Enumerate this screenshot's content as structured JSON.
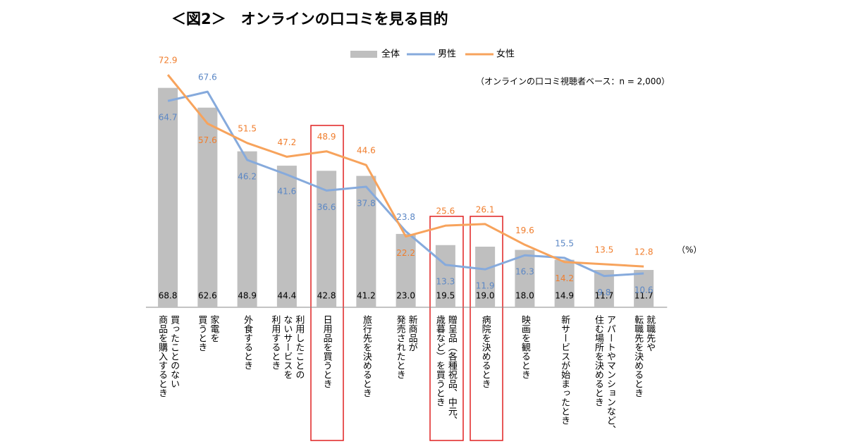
{
  "chart_data": {
    "type": "bar_line",
    "title": "＜図2＞　オンラインの口コミを見る目的",
    "note": "（オンラインの口コミ視聴者ベース：n = 2,000）",
    "unit": "（%）",
    "categories": [
      "買ったことのない\n商品を購入するとき",
      "家電を\n買うとき",
      "外食するとき",
      "利用したことの\nないサービスを\n利用するとき",
      "日用品を買うとき",
      "旅行先を決めるとき",
      "新商品が\n発売されたとき",
      "贈呈品（各種祝品、中元、\n歳暮など）を買うとき",
      "病院を決めるとき",
      "映画を観るとき",
      "新サービスが始まったとき",
      "アパートやマンションなど、\n住む場所を決めるとき",
      "就職先や\n転職先を決めるとき"
    ],
    "series": [
      {
        "name": "全体",
        "color": "#bfbfbf",
        "label_color": "#000000",
        "values": [
          68.8,
          62.6,
          48.9,
          44.4,
          42.8,
          41.2,
          23.0,
          19.5,
          19.0,
          18.0,
          14.9,
          11.7,
          11.7
        ],
        "value_labels": [
          "68.8",
          "62.6",
          "48.9",
          "44.4",
          "42.8",
          "41.2",
          "23.0",
          "19.5",
          "19.0",
          "18.0",
          "14.9",
          "11.7",
          "11.7"
        ]
      },
      {
        "name": "男性",
        "color": "#86aadc",
        "label_color": "#5b87c5",
        "values": [
          64.7,
          67.6,
          46.2,
          41.6,
          36.6,
          37.8,
          23.8,
          13.3,
          11.9,
          16.3,
          15.5,
          9.8,
          10.6
        ]
      },
      {
        "name": "女性",
        "color": "#f7a35c",
        "label_color": "#f07d2c",
        "values": [
          72.9,
          57.6,
          51.5,
          47.2,
          48.9,
          44.6,
          22.2,
          25.6,
          26.1,
          19.6,
          14.2,
          13.5,
          12.8
        ]
      }
    ],
    "ylim": [
      0,
      80
    ]
  }
}
